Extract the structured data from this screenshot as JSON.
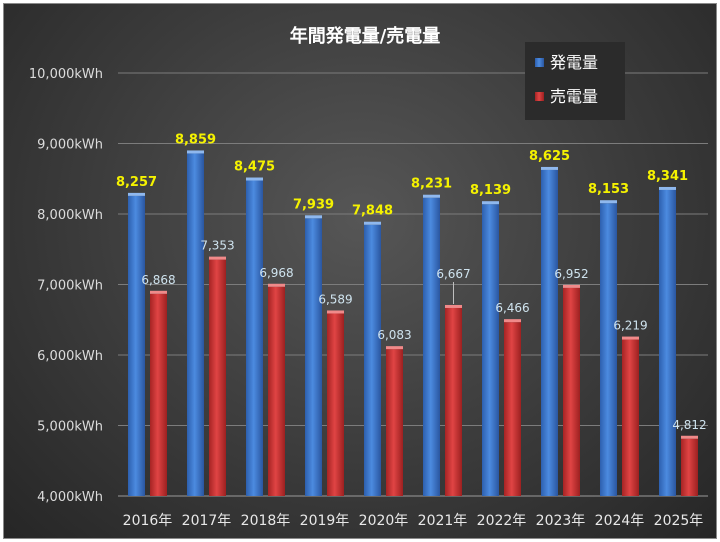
{
  "chart_data": {
    "type": "bar",
    "title": "年間発電量/売電量",
    "categories": [
      "2016年",
      "2017年",
      "2018年",
      "2019年",
      "2020年",
      "2021年",
      "2022年",
      "2023年",
      "2024年",
      "2025年"
    ],
    "series": [
      {
        "name": "発電量",
        "color": "#3f7ad0",
        "values": [
          8257,
          8859,
          8475,
          7939,
          7848,
          8231,
          8139,
          8625,
          8153,
          8341
        ]
      },
      {
        "name": "売電量",
        "color": "#cf3535",
        "values": [
          6868,
          7353,
          6968,
          6589,
          6083,
          6667,
          6466,
          6952,
          6219,
          4812
        ]
      }
    ],
    "ylim": [
      4000,
      10000
    ],
    "yticks": [
      4000,
      5000,
      6000,
      7000,
      8000,
      9000,
      10000
    ],
    "yunit": "kWh",
    "ylabel": "",
    "xlabel": "",
    "legend_position": "top-right",
    "grid": true,
    "label_colors": {
      "generation": "#f5f200",
      "sale": "#cfe3ee"
    }
  }
}
